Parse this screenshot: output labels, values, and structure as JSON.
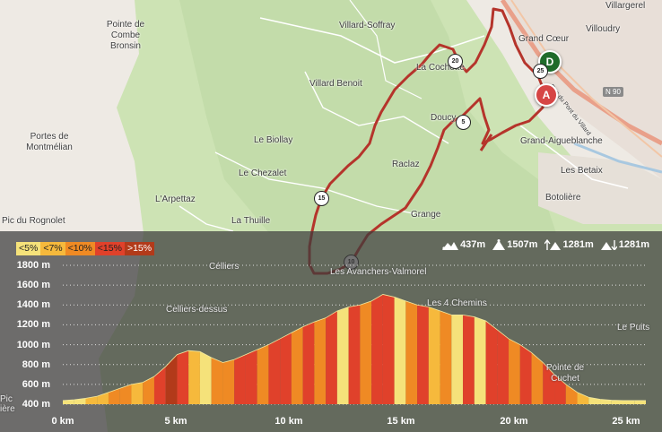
{
  "map": {
    "places": [
      {
        "name": "Villargerel",
        "key": "villargerel"
      },
      {
        "name": "Villoudry",
        "key": "villoudry"
      },
      {
        "name": "Grand Cœur",
        "key": "grand-coeur"
      },
      {
        "name": "Villard-Soffray",
        "key": "villard-soffray"
      },
      {
        "name": "La Cochette",
        "key": "la-cochette"
      },
      {
        "name": "Villard Benoit",
        "key": "villard-benoit"
      },
      {
        "name": "Doucy",
        "key": "doucy"
      },
      {
        "name": "Grand-Aigueblanche",
        "key": "grand-aigueblanche"
      },
      {
        "name": "Le Biollay",
        "key": "le-biollay"
      },
      {
        "name": "Raclaz",
        "key": "raclaz"
      },
      {
        "name": "Les Betaix",
        "key": "les-betaix"
      },
      {
        "name": "Le Chezalet",
        "key": "le-chezalet"
      },
      {
        "name": "Botolière",
        "key": "botoliere"
      },
      {
        "name": "L'Arpettaz",
        "key": "l-arpettaz"
      },
      {
        "name": "Grange",
        "key": "grange"
      },
      {
        "name": "La Thuille",
        "key": "la-thuille"
      },
      {
        "name": "Célliers",
        "key": "celliers"
      },
      {
        "name": "Les Avanchers-Valmorel",
        "key": "les-avanchers-valmorel"
      },
      {
        "name": "Celliers-dessus",
        "key": "celliers-dessus"
      },
      {
        "name": "Les 4 Chemins",
        "key": "les-4-chemins"
      },
      {
        "name": "Le Puits",
        "key": "le-puits"
      },
      {
        "name": "Pic du Rognolet",
        "key": "pic-du-rognolet"
      },
      {
        "name": "Pic",
        "key": "pic-short"
      },
      {
        "name": "ière",
        "key": "iere"
      }
    ],
    "multiline_places": [
      {
        "lines": [
          "Pointe de",
          "Combe",
          "Bronsin"
        ],
        "key": "pointe-de-combe-bronsin"
      },
      {
        "lines": [
          "Portes de",
          "Montmélian"
        ],
        "key": "portes-de-montmelian"
      },
      {
        "lines": [
          "Pointe de",
          "Cuchet"
        ],
        "key": "pointe-de-cuchet"
      }
    ],
    "roads": [
      {
        "label": "N 90",
        "key": "n90"
      },
      {
        "label": "Rue du Pont du Villard",
        "key": "rue-pont-villard"
      }
    ],
    "markers": {
      "start": "D",
      "end": "A"
    },
    "km_markers": [
      "5",
      "10",
      "15",
      "20",
      "25"
    ],
    "route_color": "#b5342b"
  },
  "profile": {
    "legend": [
      {
        "label": "<5%",
        "color": "#f5e27a"
      },
      {
        "label": "<7%",
        "color": "#f6b93c"
      },
      {
        "label": "<10%",
        "color": "#ef8a24"
      },
      {
        "label": "<15%",
        "color": "#e0412b"
      },
      {
        "label": ">15%",
        "color": "#b23a1a"
      }
    ],
    "stats": {
      "min_alt": "437m",
      "max_alt": "1507m",
      "ascent": "1281m",
      "descent": "1281m"
    }
  },
  "chart_data": {
    "type": "area",
    "title": "",
    "xlabel": "",
    "ylabel": "",
    "x_unit": "km",
    "y_unit": "m",
    "xlim": [
      0,
      25.5
    ],
    "ylim": [
      400,
      1800
    ],
    "x_ticks": [
      "0 km",
      "5 km",
      "10 km",
      "15 km",
      "20 km",
      "25 km"
    ],
    "y_ticks": [
      "1800 m",
      "1600 m",
      "1400 m",
      "1200 m",
      "1000 m",
      "800 m",
      "600 m",
      "400 m"
    ],
    "grid": true,
    "x": [
      0,
      0.5,
      1,
      1.5,
      2,
      2.5,
      3,
      3.5,
      4,
      4.5,
      5,
      5.5,
      6,
      6.5,
      7,
      7.5,
      8,
      8.5,
      9,
      9.5,
      10,
      10.5,
      11,
      11.5,
      12,
      12.5,
      13,
      13.5,
      14,
      14.5,
      15,
      15.5,
      16,
      16.5,
      17,
      17.5,
      18,
      18.5,
      19,
      19.5,
      20,
      20.5,
      21,
      21.5,
      22,
      22.5,
      23,
      23.5,
      24,
      24.5,
      25,
      25.5
    ],
    "values": [
      437,
      445,
      460,
      480,
      520,
      560,
      600,
      620,
      680,
      780,
      900,
      940,
      930,
      870,
      820,
      850,
      900,
      950,
      1000,
      1060,
      1120,
      1180,
      1230,
      1270,
      1340,
      1380,
      1400,
      1440,
      1507,
      1480,
      1440,
      1400,
      1380,
      1340,
      1300,
      1300,
      1280,
      1240,
      1150,
      1060,
      1000,
      920,
      820,
      700,
      600,
      520,
      470,
      450,
      440,
      437,
      437,
      437
    ],
    "slope_classes": [
      "<5%",
      "<5%",
      "<7%",
      "<7%",
      "<10%",
      "<10%",
      "<7%",
      "<10%",
      "<15%",
      ">15%",
      "<15%",
      "<7%",
      "<5%",
      "<10%",
      "<10%",
      "<15%",
      "<15%",
      "<10%",
      "<15%",
      "<15%",
      "<10%",
      "<15%",
      "<10%",
      "<15%",
      "<5%",
      "<15%",
      "<10%",
      "<15%",
      "<15%",
      "<5%",
      "<10%",
      "<15%",
      "<7%",
      "<10%",
      "<5%",
      "<15%",
      "<5%",
      "<15%",
      "<15%",
      "<10%",
      "<15%",
      "<10%",
      "<15%",
      "<15%",
      "<10%",
      "<7%",
      "<5%",
      "<5%",
      "<5%",
      "<5%",
      "<5%"
    ]
  }
}
